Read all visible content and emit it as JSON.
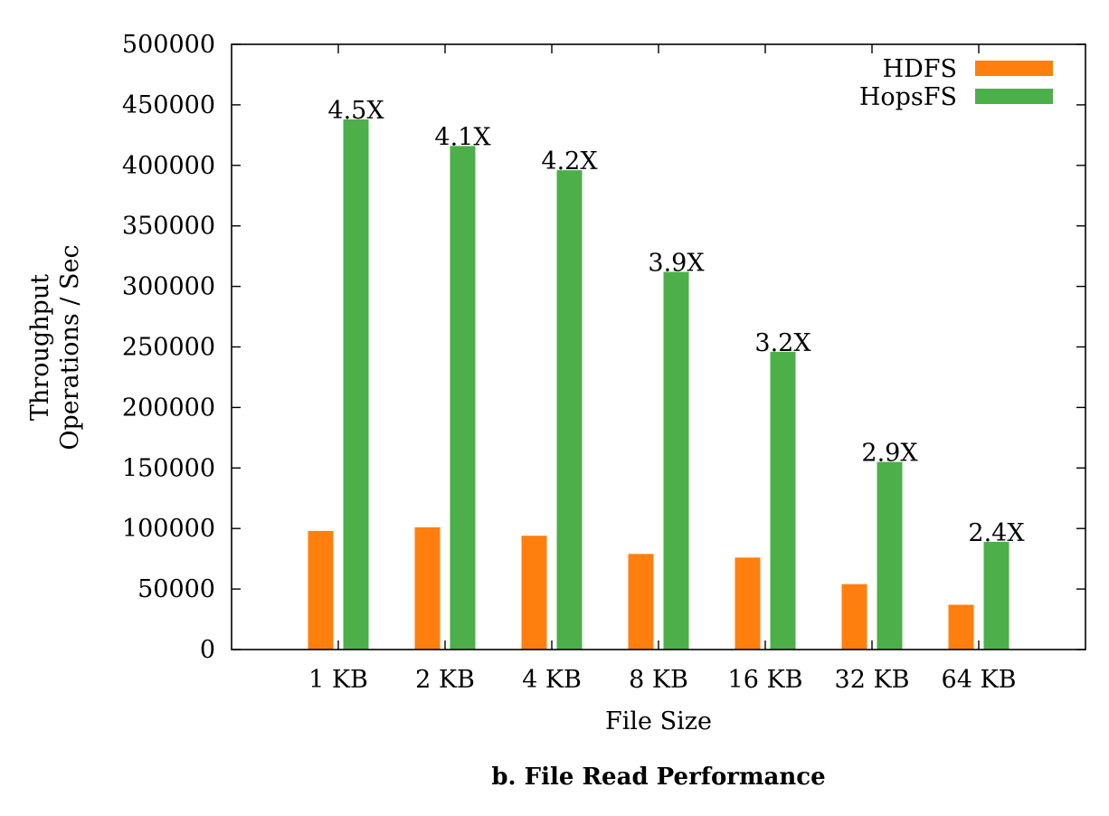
{
  "chart_data": {
    "type": "bar",
    "caption": "b.  File Read Performance",
    "xlabel": "File Size",
    "ylabel_lines": [
      "Throughput",
      "Operations / Sec"
    ],
    "ylim": [
      0,
      500000
    ],
    "yticks": [
      0,
      50000,
      100000,
      150000,
      200000,
      250000,
      300000,
      350000,
      400000,
      450000,
      500000
    ],
    "categories": [
      "1 KB",
      "2 KB",
      "4 KB",
      "8 KB",
      "16 KB",
      "32 KB",
      "64 KB"
    ],
    "series": [
      {
        "name": "HDFS",
        "color": "#ff7f0e",
        "values": [
          98000,
          101000,
          94000,
          79000,
          76000,
          54000,
          37000
        ]
      },
      {
        "name": "HopsFS",
        "color": "#4daf4a",
        "values": [
          438000,
          416000,
          396000,
          312000,
          246000,
          155000,
          89000
        ]
      }
    ],
    "annotations": [
      "4.5X",
      "4.1X",
      "4.2X",
      "3.9X",
      "3.2X",
      "2.9X",
      "2.4X"
    ],
    "legend_position": "top-right",
    "grid": false
  }
}
